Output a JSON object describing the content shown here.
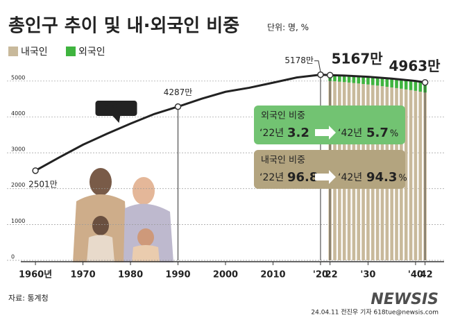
{
  "chart_data": {
    "type": "combo",
    "title": "총인구 추이 및 내·외국인 비중",
    "subtitle": "단위: 명, %",
    "xlim": [
      1954,
      2046
    ],
    "xticks": [
      {
        "value": 1960,
        "label": "1960년"
      },
      1970,
      1980,
      1990,
      2000,
      2010,
      {
        "value": 2020,
        "label": "'20"
      },
      {
        "value": 2022,
        "label": "'22"
      },
      {
        "value": 2030,
        "label": "'30"
      },
      {
        "value": 2040,
        "label": "'40"
      },
      {
        "value": 2042,
        "label": "'42"
      }
    ],
    "ylim": [
      0,
      5500
    ],
    "yticks": [
      0,
      1000,
      2000,
      3000,
      4000,
      5000
    ],
    "grid": true,
    "line": {
      "name": "총인구",
      "color": "#222222",
      "x": [
        1960,
        1965,
        1970,
        1975,
        1980,
        1985,
        1990,
        1995,
        2000,
        2005,
        2010,
        2015,
        2020,
        2022,
        2025,
        2030,
        2035,
        2040,
        2042
      ],
      "values": [
        2501,
        2870,
        3224,
        3528,
        3812,
        4081,
        4287,
        4509,
        4701,
        4814,
        4955,
        5101,
        5178,
        5167,
        5155,
        5119,
        5069,
        5004,
        4963
      ],
      "value_labels": [
        "2501만",
        null,
        null,
        null,
        null,
        null,
        "4287만",
        null,
        null,
        null,
        null,
        null,
        "5178만",
        "5167만",
        null,
        null,
        null,
        null,
        "4963만"
      ]
    },
    "bar_x": [
      2022,
      2023,
      2024,
      2025,
      2026,
      2027,
      2028,
      2029,
      2030,
      2031,
      2032,
      2033,
      2034,
      2035,
      2036,
      2037,
      2038,
      2039,
      2040,
      2041,
      2042
    ],
    "series": [
      {
        "name": "내국인",
        "color": "#c8b99b",
        "values": [
          5002,
          4994,
          4983,
          4972,
          4960,
          4946,
          4933,
          4919,
          4905,
          4889,
          4874,
          4858,
          4840,
          4823,
          4805,
          4787,
          4768,
          4748,
          4728,
          4704,
          4680
        ]
      },
      {
        "name": "외국인",
        "color": "#3fb43f",
        "values": [
          165,
          171,
          177,
          183,
          189,
          196,
          202,
          208,
          214,
          221,
          227,
          233,
          240,
          246,
          252,
          258,
          264,
          270,
          276,
          280,
          283
        ]
      }
    ],
    "share_boxes": [
      {
        "title": "외국인 비중",
        "color": "#72c372",
        "from_label": "‘22년",
        "from": 3.2,
        "to_label": "‘42년",
        "to": 5.7,
        "unit": "%"
      },
      {
        "title": "내국인 비중",
        "color": "#b3a47f",
        "from_label": "‘22년",
        "from": 96.8,
        "to_label": "‘42년",
        "to": 94.3,
        "unit": "%"
      }
    ],
    "source": "자료: 통계청",
    "credit": "24.04.11 전진우 기자 618tue@newsis.com",
    "watermark": "NEWSIS"
  }
}
